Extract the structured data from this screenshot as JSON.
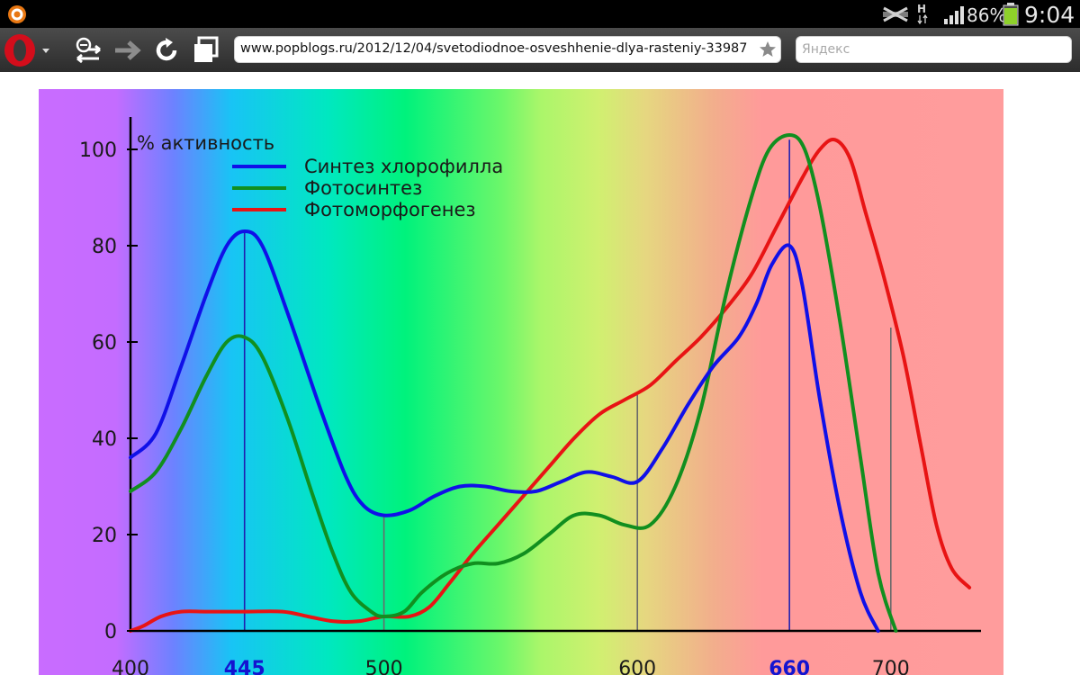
{
  "browser": {
    "url": "www.popblogs.ru/2012/12/04/svetodiodnoe-osveshhenie-dlya-rasteniy-33987",
    "search_placeholder": "Яндекс"
  },
  "status": {
    "battery": "86%",
    "time": "9:04"
  },
  "icons": {
    "notification": "opera-notification-icon",
    "network": "network-h-icon",
    "signal": "signal-bars-icon",
    "battery": "battery-icon",
    "browser_menu": "opera-logo-icon",
    "zoom_back": "zoom-back-icon",
    "forward": "forward-arrow-icon",
    "reload": "reload-icon",
    "tabs": "tabs-icon",
    "bookmark": "star-icon"
  },
  "colors": {
    "series_chlorophyll": "#1010e8",
    "series_photosynthesis": "#118f1f",
    "series_photomorph": "#e81414",
    "axis": "#000000"
  },
  "chart_data": {
    "type": "line",
    "ylabel": "% активность",
    "xlim": [
      400,
      730
    ],
    "ylim": [
      0,
      100
    ],
    "y_ticks": [
      0,
      20,
      40,
      60,
      80,
      100
    ],
    "x_ticks": [
      {
        "value": 400,
        "label": "400",
        "highlight": false
      },
      {
        "value": 445,
        "label": "445",
        "highlight": true
      },
      {
        "value": 500,
        "label": "500",
        "highlight": false
      },
      {
        "value": 600,
        "label": "600",
        "highlight": false
      },
      {
        "value": 660,
        "label": "660",
        "highlight": true
      },
      {
        "value": 700,
        "label": "700",
        "highlight": false
      }
    ],
    "reference_lines": [
      445,
      500,
      600,
      660,
      700
    ],
    "legend_position": "top-left",
    "background": "visible light spectrum gradient (violet to red)",
    "series": [
      {
        "name": "Синтез хлорофилла",
        "color": "#1010e8",
        "points": [
          [
            400,
            36
          ],
          [
            410,
            41
          ],
          [
            420,
            55
          ],
          [
            430,
            70
          ],
          [
            438,
            80
          ],
          [
            445,
            83
          ],
          [
            452,
            80
          ],
          [
            462,
            66
          ],
          [
            475,
            46
          ],
          [
            485,
            32
          ],
          [
            492,
            26
          ],
          [
            500,
            24
          ],
          [
            510,
            25
          ],
          [
            520,
            28
          ],
          [
            530,
            30
          ],
          [
            540,
            30
          ],
          [
            550,
            29
          ],
          [
            560,
            29
          ],
          [
            570,
            31
          ],
          [
            580,
            33
          ],
          [
            590,
            32
          ],
          [
            600,
            31
          ],
          [
            610,
            38
          ],
          [
            620,
            47
          ],
          [
            630,
            55
          ],
          [
            640,
            61
          ],
          [
            647,
            68
          ],
          [
            653,
            76
          ],
          [
            660,
            80
          ],
          [
            665,
            72
          ],
          [
            672,
            48
          ],
          [
            680,
            25
          ],
          [
            688,
            8
          ],
          [
            695,
            0
          ]
        ]
      },
      {
        "name": "Фотосинтез",
        "color": "#118f1f",
        "points": [
          [
            400,
            29
          ],
          [
            410,
            33
          ],
          [
            420,
            42
          ],
          [
            430,
            53
          ],
          [
            438,
            60
          ],
          [
            445,
            61
          ],
          [
            452,
            57
          ],
          [
            462,
            44
          ],
          [
            472,
            28
          ],
          [
            480,
            16
          ],
          [
            487,
            8
          ],
          [
            495,
            4
          ],
          [
            500,
            3
          ],
          [
            508,
            4
          ],
          [
            515,
            8
          ],
          [
            525,
            12
          ],
          [
            535,
            14
          ],
          [
            545,
            14
          ],
          [
            555,
            16
          ],
          [
            565,
            20
          ],
          [
            575,
            24
          ],
          [
            585,
            24
          ],
          [
            595,
            22
          ],
          [
            605,
            22
          ],
          [
            615,
            30
          ],
          [
            625,
            46
          ],
          [
            635,
            70
          ],
          [
            645,
            90
          ],
          [
            652,
            100
          ],
          [
            660,
            103
          ],
          [
            666,
            100
          ],
          [
            672,
            88
          ],
          [
            680,
            64
          ],
          [
            688,
            36
          ],
          [
            695,
            12
          ],
          [
            702,
            0
          ]
        ]
      },
      {
        "name": "Фотоморфогенез",
        "color": "#e81414",
        "points": [
          [
            400,
            0
          ],
          [
            405,
            1
          ],
          [
            412,
            3
          ],
          [
            420,
            4
          ],
          [
            430,
            4
          ],
          [
            445,
            4
          ],
          [
            460,
            4
          ],
          [
            470,
            3
          ],
          [
            480,
            2
          ],
          [
            490,
            2
          ],
          [
            500,
            3
          ],
          [
            510,
            3
          ],
          [
            518,
            5
          ],
          [
            526,
            10
          ],
          [
            535,
            16
          ],
          [
            545,
            22
          ],
          [
            555,
            28
          ],
          [
            565,
            34
          ],
          [
            575,
            40
          ],
          [
            585,
            45
          ],
          [
            595,
            48
          ],
          [
            605,
            51
          ],
          [
            615,
            56
          ],
          [
            625,
            61
          ],
          [
            635,
            67
          ],
          [
            645,
            74
          ],
          [
            655,
            84
          ],
          [
            665,
            94
          ],
          [
            672,
            100
          ],
          [
            678,
            102
          ],
          [
            684,
            98
          ],
          [
            690,
            87
          ],
          [
            697,
            74
          ],
          [
            705,
            57
          ],
          [
            712,
            38
          ],
          [
            718,
            22
          ],
          [
            724,
            13
          ],
          [
            731,
            9
          ]
        ]
      }
    ]
  }
}
